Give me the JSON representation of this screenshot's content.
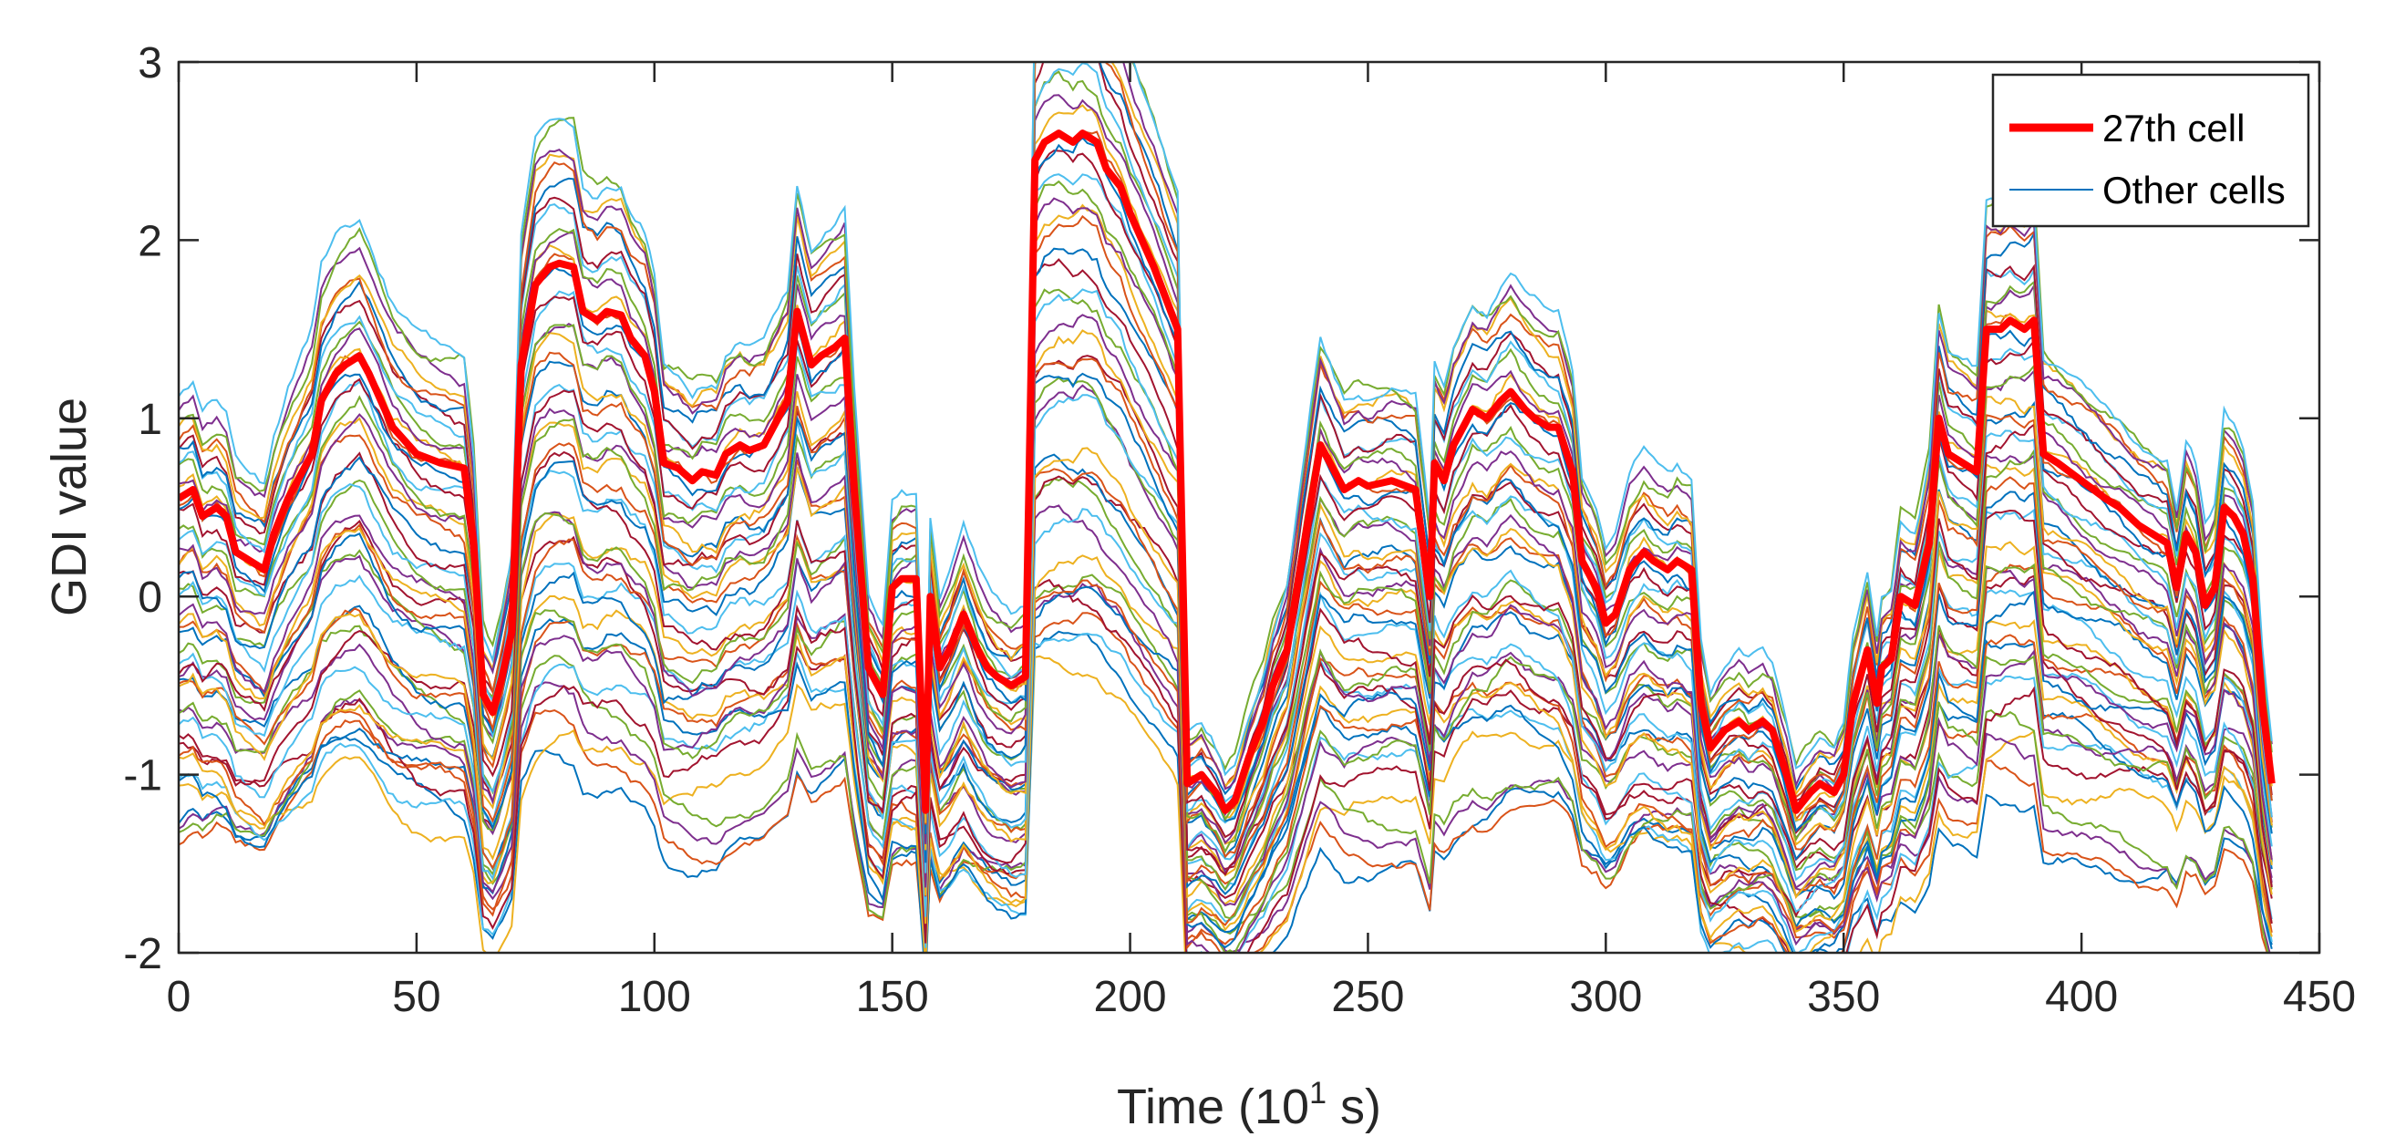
{
  "chart_data": {
    "type": "line",
    "title": "",
    "xlabel_prefix": "Time (10",
    "xlabel_sup": "1",
    "xlabel_suffix": " s)",
    "ylabel": "GDI value",
    "xlim": [
      0,
      450
    ],
    "ylim": [
      -2,
      3
    ],
    "xticks": [
      0,
      50,
      100,
      150,
      200,
      250,
      300,
      350,
      400,
      450
    ],
    "yticks": [
      -2,
      -1,
      0,
      1,
      2,
      3
    ],
    "xtick_labels": [
      "0",
      "50",
      "100",
      "150",
      "200",
      "250",
      "300",
      "350",
      "400",
      "450"
    ],
    "ytick_labels": [
      "-2",
      "-1",
      "0",
      "1",
      "2",
      "3"
    ],
    "grid": false,
    "legend_position": "top-right",
    "highlight_series": {
      "name": "27th cell",
      "color": "#ff0000",
      "x": [
        0,
        3,
        5,
        8,
        10,
        12,
        15,
        18,
        20,
        23,
        25,
        28,
        30,
        33,
        35,
        38,
        40,
        45,
        50,
        55,
        60,
        62,
        64,
        66,
        68,
        70,
        72,
        75,
        78,
        80,
        83,
        85,
        88,
        90,
        93,
        95,
        98,
        100,
        102,
        105,
        108,
        110,
        113,
        115,
        118,
        120,
        123,
        125,
        128,
        130,
        133,
        135,
        138,
        140,
        142,
        145,
        148,
        150,
        152,
        155,
        157,
        158,
        160,
        162,
        165,
        168,
        170,
        172,
        175,
        178,
        180,
        182,
        185,
        188,
        190,
        193,
        195,
        198,
        200,
        205,
        210,
        212,
        215,
        218,
        220,
        222,
        225,
        228,
        230,
        233,
        236,
        240,
        243,
        245,
        248,
        250,
        255,
        260,
        263,
        264,
        266,
        268,
        270,
        272,
        275,
        278,
        280,
        283,
        285,
        288,
        290,
        293,
        295,
        298,
        300,
        302,
        305,
        308,
        310,
        313,
        315,
        318,
        320,
        322,
        325,
        328,
        330,
        333,
        335,
        338,
        340,
        343,
        345,
        348,
        350,
        352,
        355,
        357,
        358,
        360,
        362,
        365,
        368,
        370,
        372,
        375,
        378,
        380,
        383,
        385,
        388,
        390,
        392,
        395,
        400,
        405,
        408,
        410,
        412,
        415,
        418,
        420,
        422,
        424,
        426,
        428,
        430,
        432,
        434,
        436,
        438,
        440
      ],
      "y": [
        0.55,
        0.6,
        0.45,
        0.5,
        0.45,
        0.25,
        0.2,
        0.15,
        0.35,
        0.55,
        0.65,
        0.8,
        1.1,
        1.25,
        1.3,
        1.35,
        1.25,
        0.95,
        0.8,
        0.75,
        0.72,
        0.3,
        -0.55,
        -0.65,
        -0.45,
        -0.2,
        1.3,
        1.75,
        1.85,
        1.87,
        1.85,
        1.6,
        1.55,
        1.6,
        1.58,
        1.45,
        1.35,
        1.15,
        0.75,
        0.72,
        0.65,
        0.7,
        0.68,
        0.8,
        0.85,
        0.82,
        0.85,
        0.95,
        1.1,
        1.6,
        1.3,
        1.35,
        1.4,
        1.45,
        0.6,
        -0.4,
        -0.55,
        0.05,
        0.1,
        0.1,
        -1.2,
        0.0,
        -0.4,
        -0.3,
        -0.1,
        -0.3,
        -0.4,
        -0.45,
        -0.5,
        -0.45,
        2.45,
        2.55,
        2.6,
        2.55,
        2.6,
        2.55,
        2.4,
        2.3,
        2.15,
        1.85,
        1.5,
        -1.05,
        -1.0,
        -1.1,
        -1.2,
        -1.15,
        -0.9,
        -0.7,
        -0.5,
        -0.3,
        0.2,
        0.85,
        0.7,
        0.6,
        0.65,
        0.62,
        0.65,
        0.6,
        0.0,
        0.75,
        0.65,
        0.85,
        0.95,
        1.05,
        1.0,
        1.1,
        1.15,
        1.05,
        1.0,
        0.95,
        0.95,
        0.7,
        0.2,
        0.05,
        -0.15,
        -0.1,
        0.15,
        0.25,
        0.2,
        0.15,
        0.2,
        0.15,
        -0.6,
        -0.85,
        -0.75,
        -0.7,
        -0.75,
        -0.7,
        -0.75,
        -1.0,
        -1.2,
        -1.1,
        -1.05,
        -1.1,
        -1.0,
        -0.6,
        -0.3,
        -0.6,
        -0.4,
        -0.35,
        0.0,
        -0.05,
        0.3,
        1.0,
        0.8,
        0.75,
        0.7,
        1.5,
        1.5,
        1.55,
        1.5,
        1.55,
        0.8,
        0.75,
        0.65,
        0.55,
        0.5,
        0.45,
        0.4,
        0.35,
        0.3,
        0.05,
        0.35,
        0.25,
        -0.05,
        0.05,
        0.5,
        0.45,
        0.35,
        0.1,
        -0.6,
        -1.05
      ]
    },
    "other_series": {
      "name": "Other cells",
      "count": 48,
      "color": "#0072bd",
      "offsets_range": [
        -1.6,
        0.45
      ],
      "palette": [
        "#0072bd",
        "#d95319",
        "#edb120",
        "#7e2f8e",
        "#77ac30",
        "#4dbeee",
        "#a2142f"
      ]
    }
  },
  "legend": {
    "items": [
      {
        "label": "27th cell",
        "color": "#ff0000"
      },
      {
        "label": "Other cells",
        "color": "#0072bd"
      }
    ]
  }
}
